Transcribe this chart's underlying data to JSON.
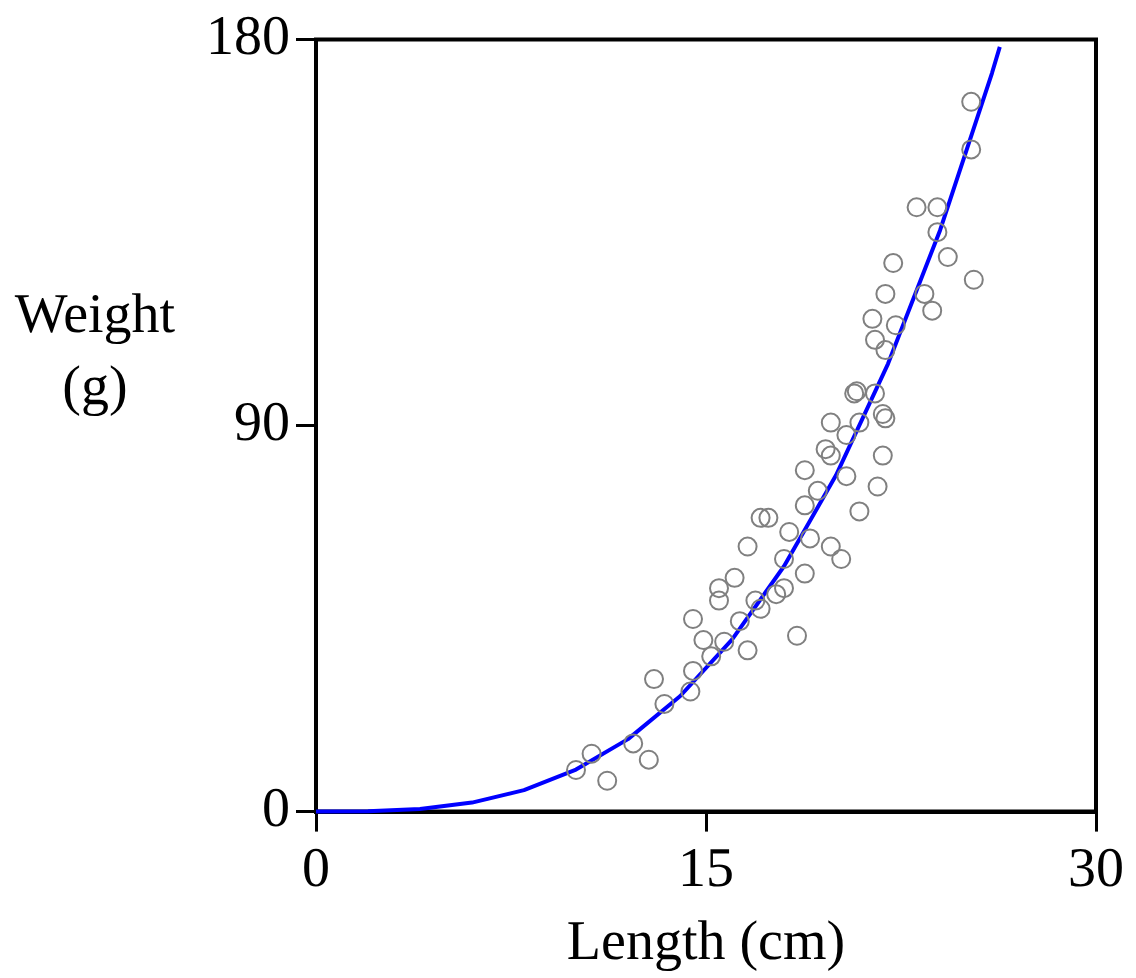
{
  "chart_data": {
    "type": "scatter",
    "xlabel": "Length (cm)",
    "ylabel": "Weight (g)",
    "xlim": [
      0,
      30
    ],
    "xticks": [
      0,
      15,
      30
    ],
    "ylim": [
      0,
      180
    ],
    "yticks": [
      0,
      90,
      180
    ],
    "marker": "circle",
    "series": [
      {
        "color": "#808080",
        "x": [
          10.0,
          11.2,
          10.6,
          12.2,
          12.8,
          13.4,
          13.0,
          14.5,
          14.4,
          15.2,
          14.9,
          14.5,
          15.5,
          16.1,
          16.6,
          17.1,
          17.7,
          18.5,
          18.0,
          17.4,
          18.2,
          18.8,
          19.3,
          19.8,
          20.2,
          18.8,
          19.8,
          20.4,
          20.9,
          21.6,
          19.6,
          20.4,
          20.9,
          19.8,
          20.7,
          21.5,
          21.9,
          21.8,
          16.9,
          16.3,
          15.7,
          16.6,
          18.0,
          18.8,
          19.0,
          17.1,
          15.5,
          25.2,
          25.2,
          23.1,
          23.9,
          23.9,
          24.3,
          22.2,
          25.3,
          23.4,
          21.9,
          23.7,
          21.4,
          22.3,
          21.9,
          21.5,
          20.8,
          21.8
        ],
        "values": [
          9.7,
          7.2,
          13.5,
          15.9,
          12.1,
          25.1,
          30.9,
          32.8,
          28,
          36.2,
          40,
          44.9,
          49.2,
          54.5,
          61.8,
          47.3,
          50.7,
          41,
          58.9,
          68.5,
          65.2,
          71.4,
          74.8,
          61.8,
          58.9,
          79.6,
          83,
          78.2,
          70,
          75.8,
          84.5,
          87.8,
          90.7,
          90.7,
          97.5,
          97.5,
          91.7,
          83,
          49.2,
          44.4,
          39.6,
          37.6,
          52.1,
          55.5,
          63.7,
          68.5,
          52.1,
          165.5,
          154.4,
          140.9,
          140.9,
          135.1,
          129.3,
          127.9,
          124,
          120.7,
          120.7,
          116.8,
          114.9,
          113.4,
          107.6,
          110,
          98,
          92.7
        ]
      },
      {
        "type": "line",
        "color": "#0000ff",
        "marker": "none",
        "x": [
          0,
          2,
          4,
          6,
          8,
          10,
          12,
          14,
          16,
          18,
          20,
          22,
          24,
          26,
          26.3
        ],
        "values": [
          0,
          0.1,
          0.6,
          2.1,
          5.0,
          9.8,
          16.9,
          26.9,
          40.1,
          57.2,
          78.4,
          104.4,
          135.5,
          172.2,
          178.3
        ]
      }
    ]
  }
}
